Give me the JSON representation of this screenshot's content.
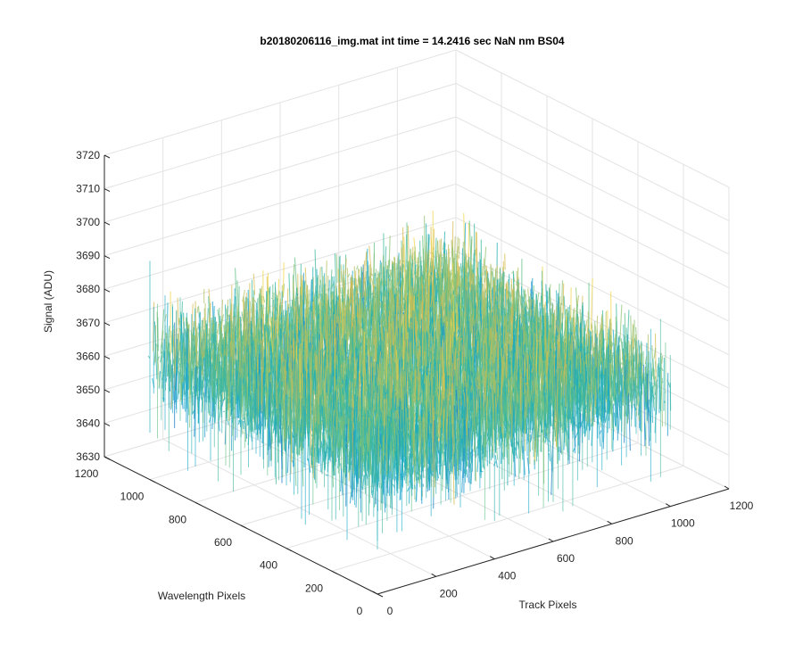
{
  "chart_data": {
    "type": "surface",
    "title": "b20180206116_img.mat int time = 14.2416 sec  NaN nm BS04",
    "xlabel": "Track Pixels",
    "ylabel": "Wavelength Pixels",
    "zlabel": "Signal (ADU)",
    "xlim": [
      0,
      1200
    ],
    "ylim": [
      0,
      1200
    ],
    "zlim": [
      3630,
      3720
    ],
    "x_ticks": [
      "0",
      "200",
      "400",
      "600",
      "800",
      "1000",
      "1200"
    ],
    "y_ticks": [
      "0",
      "200",
      "400",
      "600",
      "800",
      "1000",
      "1200"
    ],
    "z_ticks": [
      "3630",
      "3640",
      "3650",
      "3660",
      "3670",
      "3680",
      "3690",
      "3700",
      "3710",
      "3720"
    ],
    "surface": {
      "x_extent": [
        0,
        1000
      ],
      "y_extent": [
        0,
        1000
      ],
      "z_mean": 3667,
      "z_range_approx": [
        3635,
        3712
      ]
    },
    "colormap": "parula",
    "grid": true
  }
}
